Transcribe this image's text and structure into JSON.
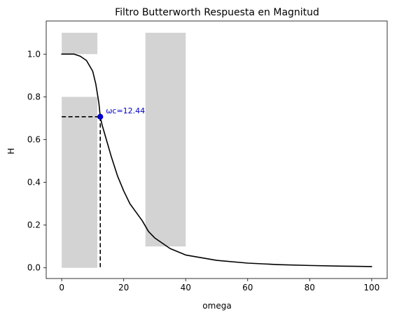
{
  "chart_data": {
    "type": "line",
    "title": "Filtro Butterworth Respuesta en Magnitud",
    "xlabel": "omega",
    "ylabel": "H",
    "xlim": [
      -5,
      105
    ],
    "ylim": [
      -0.05,
      1.155
    ],
    "xticks": [
      0,
      20,
      40,
      60,
      80,
      100
    ],
    "xtick_labels": [
      "0",
      "20",
      "40",
      "60",
      "80",
      "100"
    ],
    "yticks": [
      0.0,
      0.2,
      0.4,
      0.6,
      0.8,
      1.0
    ],
    "ytick_labels": [
      "0.0",
      "0.2",
      "0.4",
      "0.6",
      "0.8",
      "1.0"
    ],
    "grid": false,
    "series": [
      {
        "color": "#000000",
        "x": [
          0,
          2,
          4,
          6,
          8,
          10,
          11,
          12,
          12.44,
          13,
          14,
          15,
          16,
          18,
          20,
          22,
          24,
          26,
          28,
          30,
          35,
          40,
          50,
          60,
          70,
          80,
          90,
          100
        ],
        "y": [
          1.0,
          1.0,
          1.0,
          0.99,
          0.97,
          0.92,
          0.86,
          0.77,
          0.707,
          0.67,
          0.62,
          0.57,
          0.52,
          0.43,
          0.36,
          0.3,
          0.26,
          0.22,
          0.17,
          0.14,
          0.09,
          0.06,
          0.035,
          0.022,
          0.015,
          0.011,
          0.008,
          0.006
        ]
      }
    ],
    "regions": [
      {
        "x": [
          0,
          11.5
        ],
        "y": [
          1.0,
          1.1
        ],
        "color": "#d3d3d3"
      },
      {
        "x": [
          0,
          11.5
        ],
        "y": [
          0.0,
          0.8
        ],
        "color": "#d3d3d3"
      },
      {
        "x": [
          27,
          40
        ],
        "y": [
          0.1,
          1.1
        ],
        "color": "#d3d3d3"
      }
    ],
    "cutoff": {
      "x": 12.44,
      "y": 0.707,
      "label": "ωc=12.44",
      "color": "#0000cc",
      "line_color": "#000000",
      "line_style": "dashed"
    }
  }
}
